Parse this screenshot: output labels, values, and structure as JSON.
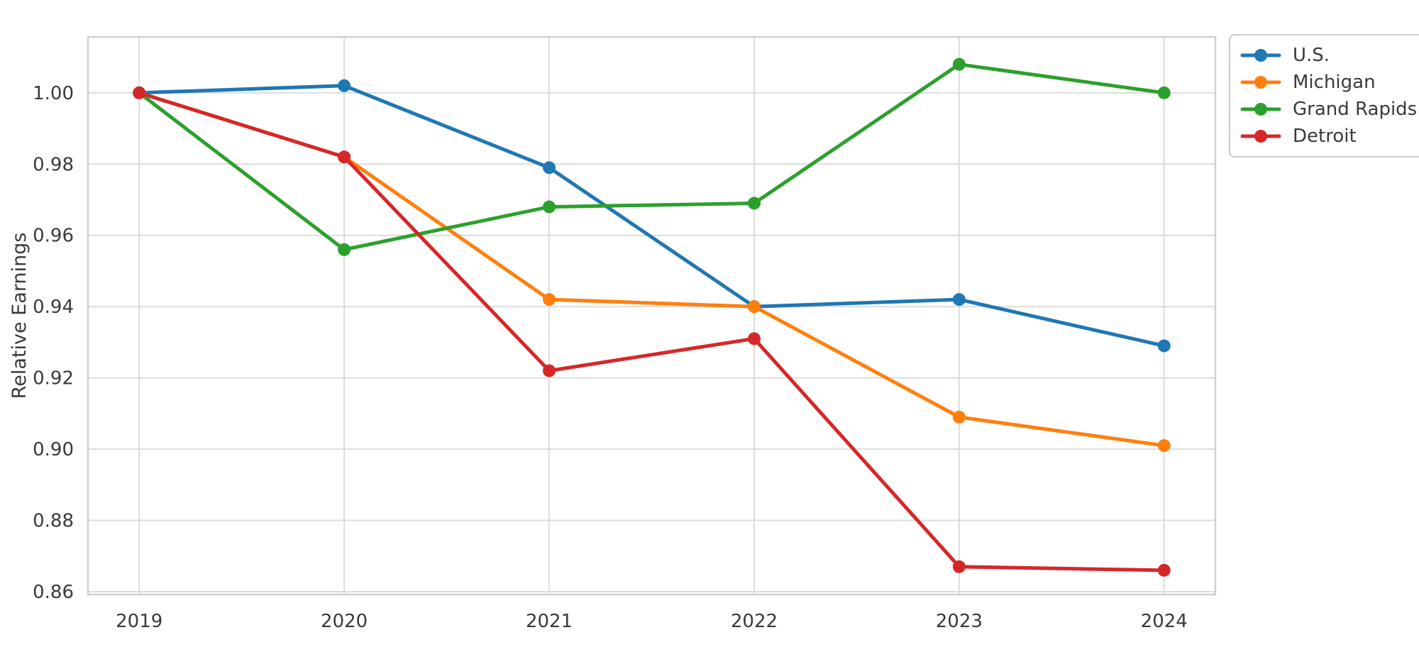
{
  "chart_data": {
    "type": "line",
    "title": "",
    "xlabel": "",
    "ylabel": "Relative Earnings",
    "categories": [
      "2019",
      "2020",
      "2021",
      "2022",
      "2023",
      "2024"
    ],
    "x": [
      2019,
      2020,
      2021,
      2022,
      2023,
      2024
    ],
    "series": [
      {
        "name": "U.S.",
        "color": "#1f77b4",
        "values": [
          1.0,
          1.002,
          0.979,
          0.94,
          0.942,
          0.929
        ]
      },
      {
        "name": "Michigan",
        "color": "#ff7f0e",
        "values": [
          1.0,
          0.982,
          0.942,
          0.94,
          0.909,
          0.901
        ]
      },
      {
        "name": "Grand Rapids",
        "color": "#2ca02c",
        "values": [
          1.0,
          0.956,
          0.968,
          0.969,
          1.008,
          1.0
        ]
      },
      {
        "name": "Detroit",
        "color": "#d62728",
        "values": [
          1.0,
          0.982,
          0.922,
          0.931,
          0.867,
          0.866
        ]
      }
    ],
    "yticks": [
      0.86,
      0.88,
      0.9,
      0.92,
      0.94,
      0.96,
      0.98,
      1.0
    ],
    "ytick_labels": [
      "0.86",
      "0.88",
      "0.90",
      "0.92",
      "0.94",
      "0.96",
      "0.98",
      "1.00"
    ],
    "ylim": [
      0.8592,
      1.0157
    ],
    "xlim": [
      2018.75,
      2024.25
    ],
    "grid": true,
    "legend_position": "outside-top-right",
    "legend_entries": [
      "U.S.",
      "Michigan",
      "Grand Rapids",
      "Detroit"
    ],
    "colors": {
      "background": "#ffffff",
      "grid": "#dcdcdc",
      "spine": "#d0d0d0",
      "text": "#3a3a3a"
    }
  }
}
